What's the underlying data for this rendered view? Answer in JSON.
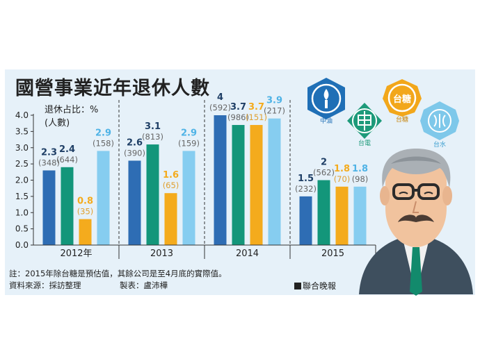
{
  "title": "國營事業近年退休人數",
  "legend_rate": "退休占比：%",
  "legend_count": "(人數)",
  "note": "註：2015年除台糖是預估值，其餘公司是至4月底的實際值。",
  "source": "資料來源：採訪整理",
  "maker": "製表：盧沛樺",
  "press": "聯合晚報",
  "logos": [
    {
      "name": "中油",
      "color": "#1f6fb6",
      "icon": "flame-torch-icon"
    },
    {
      "name": "台電",
      "color": "#1d9a7a",
      "icon": "power-grid-icon"
    },
    {
      "name": "台糖",
      "color": "#f2a71b",
      "icon": "sugar-seal-icon"
    },
    {
      "name": "台水",
      "color": "#7ec8ea",
      "icon": "water-drop-icon"
    }
  ],
  "colors": {
    "中油": "#2e6db4",
    "台電": "#13967a",
    "台糖": "#f4ab1d",
    "台水": "#86cdf0",
    "count_text": "#666666"
  },
  "chart_data": {
    "type": "bar",
    "categories": [
      "2012年",
      "2013",
      "2014",
      "2015"
    ],
    "ylim": [
      0,
      4.0
    ],
    "yticks": [
      "0.0",
      "0.5",
      "1.0",
      "1.5",
      "2.0",
      "2.5",
      "3.0",
      "3.5",
      "4.0"
    ],
    "grid": false,
    "series": [
      {
        "name": "中油",
        "values": [
          2.3,
          2.6,
          4,
          1.5
        ],
        "labels": [
          "2.3",
          "2.6",
          "4",
          "1.5"
        ],
        "counts": [
          "(348)",
          "(390)",
          "(592)",
          "(232)"
        ]
      },
      {
        "name": "台電",
        "values": [
          2.4,
          3.1,
          3.7,
          2
        ],
        "labels": [
          "2.4",
          "3.1",
          "3.7",
          "2"
        ],
        "counts": [
          "(644)",
          "(813)",
          "(986)",
          "(562)"
        ]
      },
      {
        "name": "台糖",
        "values": [
          0.8,
          1.6,
          3.7,
          1.8
        ],
        "labels": [
          "0.8",
          "1.6",
          "3.7",
          "1.8"
        ],
        "counts": [
          "(35)",
          "(65)",
          "(151)",
          "(70)"
        ]
      },
      {
        "name": "台水",
        "values": [
          2.9,
          2.9,
          3.9,
          1.8
        ],
        "labels": [
          "2.9",
          "2.9",
          "3.9",
          "1.8"
        ],
        "counts": [
          "(158)",
          "(159)",
          "(217)",
          "(98)"
        ]
      }
    ]
  }
}
